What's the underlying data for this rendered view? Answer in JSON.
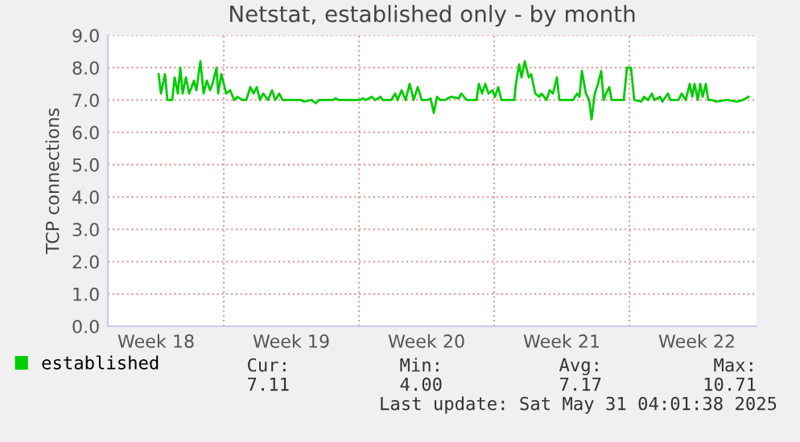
{
  "chart_data": {
    "type": "line",
    "title": "Netstat, established only - by month",
    "ylabel": "TCP connections",
    "xlim": [
      "2025-04-28T00:00",
      "2025-05-31T14:00"
    ],
    "ylim": [
      0,
      9
    ],
    "xticks": [
      {
        "value": "2025-04-30T12:00",
        "label": "Week 18"
      },
      {
        "value": "2025-05-04",
        "label": null
      },
      {
        "value": "2025-05-07T12:00",
        "label": "Week 19"
      },
      {
        "value": "2025-05-11",
        "label": null
      },
      {
        "value": "2025-05-14T12:00",
        "label": "Week 20"
      },
      {
        "value": "2025-05-18",
        "label": null
      },
      {
        "value": "2025-05-21T12:00",
        "label": "Week 21"
      },
      {
        "value": "2025-05-25",
        "label": null
      },
      {
        "value": "2025-05-28T12:00",
        "label": "Week 22"
      }
    ],
    "yticks": [
      {
        "value": 0,
        "label": "0.0"
      },
      {
        "value": 1,
        "label": "1.0"
      },
      {
        "value": 2,
        "label": "2.0"
      },
      {
        "value": 3,
        "label": "3.0"
      },
      {
        "value": 4,
        "label": "4.0"
      },
      {
        "value": 5,
        "label": "5.0"
      },
      {
        "value": 6,
        "label": "6.0"
      },
      {
        "value": 7,
        "label": "7.0"
      },
      {
        "value": 8,
        "label": "8.0"
      },
      {
        "value": 9,
        "label": "9.0"
      }
    ],
    "grid": true,
    "legend": "bottom left",
    "annotations": [
      "Cur:",
      "Min:",
      "Avg:",
      "Max:",
      "7.11",
      "4.00",
      "7.17",
      "10.71",
      "Last update: Sat May 31 04:01:38 2025"
    ],
    "series": [
      {
        "name": "established",
        "color": "#00cc00",
        "x": [
          "2025-04-30T15:00",
          "2025-04-30T18:00",
          "2025-04-30T23:00",
          "2025-05-01T02:00",
          "2025-05-01T08:00",
          "2025-05-01T11:00",
          "2025-05-01T15:00",
          "2025-05-01T18:00",
          "2025-05-01T21:00",
          "2025-05-02T01:00",
          "2025-05-02T05:00",
          "2025-05-02T11:00",
          "2025-05-02T14:00",
          "2025-05-02T19:00",
          "2025-05-02T23:00",
          "2025-05-03T03:00",
          "2025-05-03T07:00",
          "2025-05-03T10:00",
          "2025-05-03T15:00",
          "2025-05-03T17:00",
          "2025-05-03T21:00",
          "2025-05-04T03:00",
          "2025-05-04T08:00",
          "2025-05-04T13:00",
          "2025-05-04T17:00",
          "2025-05-04T23:00",
          "2025-05-05T04:00",
          "2025-05-05T09:00",
          "2025-05-05T13:00",
          "2025-05-05T17:00",
          "2025-05-05T21:00",
          "2025-05-06T01:00",
          "2025-05-06T07:00",
          "2025-05-06T12:00",
          "2025-05-06T16:00",
          "2025-05-06T21:00",
          "2025-05-07T01:00",
          "2025-05-08T00:00",
          "2025-05-08T04:00",
          "2025-05-08T13:00",
          "2025-05-08T18:00",
          "2025-05-08T23:00",
          "2025-05-09T16:00",
          "2025-05-09T19:00",
          "2025-05-09T23:00",
          "2025-05-10T09:00",
          "2025-05-10T12:00",
          "2025-05-11T01:00",
          "2025-05-11T05:00",
          "2025-05-11T08:00",
          "2025-05-11T16:00",
          "2025-05-11T20:00",
          "2025-05-12T03:00",
          "2025-05-12T05:00",
          "2025-05-12T16:00",
          "2025-05-12T21:00",
          "2025-05-13T00:00",
          "2025-05-13T05:00",
          "2025-05-13T10:00",
          "2025-05-13T15:00",
          "2025-05-13T20:00",
          "2025-05-14T01:00",
          "2025-05-14T06:00",
          "2025-05-14T13:00",
          "2025-05-14T17:00",
          "2025-05-14T21:00",
          "2025-05-15T01:00",
          "2025-05-15T05:00",
          "2025-05-15T11:00",
          "2025-05-15T18:00",
          "2025-05-16T04:00",
          "2025-05-16T07:00",
          "2025-05-16T14:00",
          "2025-05-17T02:00",
          "2025-05-17T05:00",
          "2025-05-17T09:00",
          "2025-05-17T13:00",
          "2025-05-17T17:00",
          "2025-05-17T22:00",
          "2025-05-18T01:00",
          "2025-05-18T05:00",
          "2025-05-18T09:00",
          "2025-05-19T01:00",
          "2025-05-19T03:00",
          "2025-05-19T07:00",
          "2025-05-19T10:00",
          "2025-05-19T14:00",
          "2025-05-19T19:00",
          "2025-05-19T22:00",
          "2025-05-20T03:00",
          "2025-05-20T08:00",
          "2025-05-20T11:00",
          "2025-05-20T17:00",
          "2025-05-20T21:00",
          "2025-05-21T01:00",
          "2025-05-21T06:00",
          "2025-05-21T09:00",
          "2025-05-22T02:00",
          "2025-05-22T07:00",
          "2025-05-22T10:00",
          "2025-05-22T13:00",
          "2025-05-22T18:00",
          "2025-05-22T22:00",
          "2025-05-23T01:00",
          "2025-05-23T05:00",
          "2025-05-23T09:00",
          "2025-05-23T13:00",
          "2025-05-23T16:00",
          "2025-05-23T19:00",
          "2025-05-23T23:00",
          "2025-05-24T02:00",
          "2025-05-24T17:00",
          "2025-05-24T21:00",
          "2025-05-25T02:00",
          "2025-05-25T06:00",
          "2025-05-25T15:00",
          "2025-05-25T18:00",
          "2025-05-25T23:00",
          "2025-05-26T04:00",
          "2025-05-26T07:00",
          "2025-05-26T14:00",
          "2025-05-26T17:00",
          "2025-05-27T00:00",
          "2025-05-27T03:00",
          "2025-05-27T13:00",
          "2025-05-27T17:00",
          "2025-05-27T22:00",
          "2025-05-28T03:00",
          "2025-05-28T06:00",
          "2025-05-28T09:00",
          "2025-05-28T13:00",
          "2025-05-28T16:00",
          "2025-05-28T19:00",
          "2025-05-28T23:00",
          "2025-05-29T02:00",
          "2025-05-29T07:00",
          "2025-05-29T12:00",
          "2025-05-30T01:00",
          "2025-05-30T14:00",
          "2025-05-30T21:00",
          "2025-05-31T04:00"
        ],
        "values": [
          7.8,
          7.2,
          7.8,
          7.0,
          7.0,
          7.7,
          7.2,
          8.0,
          7.2,
          7.7,
          7.2,
          7.6,
          7.3,
          8.2,
          7.2,
          7.6,
          7.3,
          7.5,
          8.0,
          7.2,
          7.8,
          7.2,
          7.3,
          7.0,
          7.1,
          7.0,
          7.0,
          7.4,
          7.2,
          7.4,
          7.0,
          7.2,
          7.0,
          7.3,
          7.0,
          7.2,
          7.0,
          7.0,
          6.95,
          7.0,
          6.9,
          7.0,
          7.0,
          7.05,
          7.0,
          7.0,
          7.0,
          7.0,
          7.05,
          7.0,
          7.1,
          7.0,
          7.1,
          7.0,
          7.0,
          7.2,
          7.0,
          7.3,
          7.0,
          7.5,
          7.0,
          7.4,
          7.0,
          7.0,
          7.05,
          6.6,
          7.1,
          7.0,
          7.0,
          7.1,
          7.05,
          7.2,
          7.0,
          7.0,
          7.5,
          7.2,
          7.5,
          7.2,
          7.3,
          7.1,
          7.4,
          7.0,
          7.0,
          7.5,
          8.1,
          7.7,
          8.2,
          7.7,
          7.8,
          7.2,
          7.1,
          7.2,
          7.0,
          7.3,
          7.2,
          7.7,
          7.0,
          7.0,
          7.2,
          7.1,
          7.9,
          7.2,
          7.0,
          6.4,
          7.2,
          7.5,
          7.9,
          7.0,
          7.2,
          7.4,
          7.0,
          7.0,
          8.0,
          8.0,
          7.0,
          6.95,
          7.1,
          7.0,
          7.2,
          7.0,
          7.1,
          6.95,
          7.2,
          7.0,
          7.0,
          7.2,
          7.0,
          7.5,
          7.1,
          7.5,
          7.0,
          7.5,
          7.1,
          7.5,
          7.0,
          7.0,
          6.95,
          7.0,
          6.95,
          7.0,
          7.1
        ]
      }
    ]
  }
}
